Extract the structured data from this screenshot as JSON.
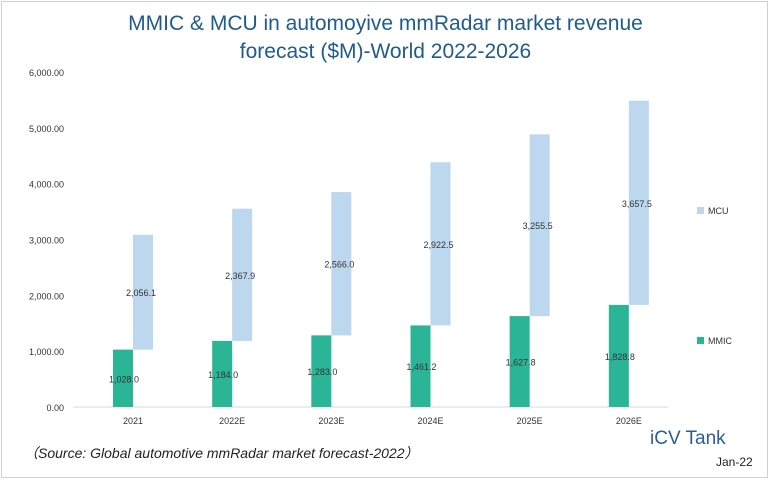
{
  "title_line1": "MMIC & MCU in automoyive mmRadar market revenue",
  "title_line2": "forecast ($M)-World  2022-2026",
  "source": "（Source:  Global automotive mmRadar market forecast-2022）",
  "brand": "iCV Tank",
  "date": "Jan-22",
  "colors": {
    "mmic": "#2bb597",
    "mcu": "#bcd7ee",
    "axis": "#d9d9d9",
    "text": "#333333"
  },
  "chart_data": {
    "type": "bar",
    "stacked": true,
    "categories": [
      "2021",
      "2022E",
      "2023E",
      "2024E",
      "2025E",
      "2026E"
    ],
    "series": [
      {
        "name": "MMIC",
        "values": [
          1028.0,
          1184.0,
          1283.0,
          1461.2,
          1627.8,
          1828.8
        ],
        "labels": [
          "1,028.0",
          "1,184.0",
          "1,283.0",
          "1,461.2",
          "1,627.8",
          "1,828.8"
        ]
      },
      {
        "name": "MCU",
        "values": [
          2056.1,
          2367.9,
          2566.0,
          2922.5,
          3255.5,
          3657.5
        ],
        "labels": [
          "2,056.1",
          "2,367.9",
          "2,566.0",
          "2,922.5",
          "3,255.5",
          "3,657.5"
        ]
      }
    ],
    "ylim": [
      0,
      6000
    ],
    "yticks": [
      0,
      1000,
      2000,
      3000,
      4000,
      5000,
      6000
    ],
    "ytick_labels": [
      "0.00",
      "1,000.00",
      "2,000.00",
      "3,000.00",
      "4,000.00",
      "5,000.00",
      "6,000.00"
    ],
    "grid": false,
    "legend_position": "right"
  }
}
